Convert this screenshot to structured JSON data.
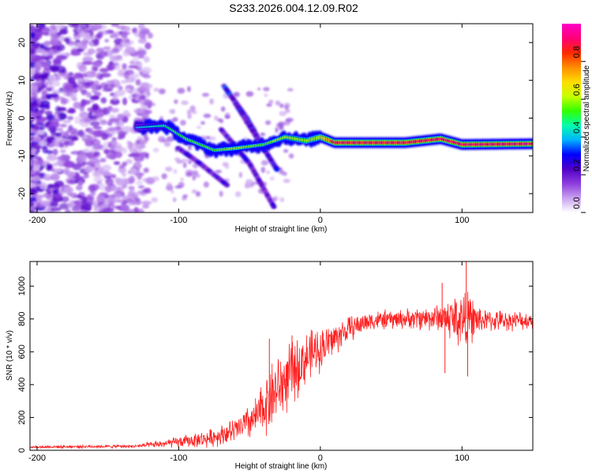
{
  "title": "S233.2026.004.12.09.R02",
  "chart_data": [
    {
      "type": "heatmap",
      "name": "spectrogram",
      "xlabel": "Height of straight line (km)",
      "ylabel": "Frequency (Hz)",
      "xlim": [
        -205,
        150
      ],
      "ylim": [
        -25,
        25
      ],
      "xticks": [
        -200,
        -100,
        0,
        100
      ],
      "yticks": [
        -20,
        -10,
        0,
        10,
        20
      ],
      "colorbar": {
        "label": "Normalized spectral amplitude",
        "range": [
          0.0,
          1.0
        ],
        "ticks": [
          0.0,
          0.2,
          0.4,
          0.6,
          0.8
        ],
        "tick_labels": [
          "0.0",
          "0.2",
          "0.4",
          "0.6",
          "0.8"
        ],
        "colormap": [
          "#ffffff",
          "#c8a0f0",
          "#8c3cdc",
          "#5000c8",
          "#0000ff",
          "#00b4ff",
          "#00ffaa",
          "#32ff00",
          "#c8ff00",
          "#ffdc00",
          "#ff8c00",
          "#ff2800",
          "#ff0078",
          "#ff00c8"
        ]
      },
      "ridge": [
        {
          "x": -130,
          "y": -2.5,
          "v": 0.25
        },
        {
          "x": -110,
          "y": -2.0,
          "v": 0.35
        },
        {
          "x": -95,
          "y": -5.5,
          "v": 0.4
        },
        {
          "x": -75,
          "y": -8.5,
          "v": 0.4
        },
        {
          "x": -60,
          "y": -8.0,
          "v": 0.45
        },
        {
          "x": -40,
          "y": -7.0,
          "v": 0.4
        },
        {
          "x": -25,
          "y": -5.0,
          "v": 0.5
        },
        {
          "x": -10,
          "y": -6.0,
          "v": 0.55
        },
        {
          "x": 0,
          "y": -5.0,
          "v": 0.6
        },
        {
          "x": 10,
          "y": -6.5,
          "v": 0.9
        },
        {
          "x": 60,
          "y": -6.5,
          "v": 0.9
        },
        {
          "x": 85,
          "y": -5.5,
          "v": 0.92
        },
        {
          "x": 100,
          "y": -7.0,
          "v": 0.92
        },
        {
          "x": 150,
          "y": -6.8,
          "v": 0.92
        }
      ],
      "branches": [
        {
          "points": [
            {
              "x": -68,
              "y": 8.5
            },
            {
              "x": -52,
              "y": 0
            },
            {
              "x": -40,
              "y": -8
            }
          ],
          "v": 0.3
        },
        {
          "points": [
            {
              "x": -60,
              "y": 4
            },
            {
              "x": -45,
              "y": -5
            },
            {
              "x": -30,
              "y": -14
            }
          ],
          "v": 0.28
        },
        {
          "points": [
            {
              "x": -70,
              "y": -3
            },
            {
              "x": -50,
              "y": -12
            },
            {
              "x": -32,
              "y": -24
            }
          ],
          "v": 0.25
        },
        {
          "points": [
            {
              "x": -100,
              "y": -8
            },
            {
              "x": -85,
              "y": -12
            },
            {
              "x": -65,
              "y": -18
            }
          ],
          "v": 0.25
        }
      ]
    },
    {
      "type": "line",
      "name": "snr",
      "xlabel": "Height of straight line (km)",
      "ylabel": "SNR (10 * v/v)",
      "xlim": [
        -205,
        150
      ],
      "ylim": [
        0,
        1150
      ],
      "xticks": [
        -200,
        -100,
        0,
        100
      ],
      "yticks": [
        0,
        200,
        400,
        600,
        800,
        1000
      ],
      "color": "#ff2020",
      "envelope": [
        {
          "x": -205,
          "mean": 20,
          "amp": 10
        },
        {
          "x": -130,
          "mean": 25,
          "amp": 12
        },
        {
          "x": -110,
          "mean": 40,
          "amp": 30
        },
        {
          "x": -80,
          "mean": 70,
          "amp": 60
        },
        {
          "x": -60,
          "mean": 120,
          "amp": 90
        },
        {
          "x": -45,
          "mean": 200,
          "amp": 150
        },
        {
          "x": -35,
          "mean": 330,
          "amp": 250
        },
        {
          "x": -25,
          "mean": 420,
          "amp": 240
        },
        {
          "x": -10,
          "mean": 560,
          "amp": 190
        },
        {
          "x": 5,
          "mean": 650,
          "amp": 140
        },
        {
          "x": 20,
          "mean": 740,
          "amp": 90
        },
        {
          "x": 35,
          "mean": 790,
          "amp": 70
        },
        {
          "x": 60,
          "mean": 800,
          "amp": 70
        },
        {
          "x": 85,
          "mean": 810,
          "amp": 100
        },
        {
          "x": 100,
          "mean": 800,
          "amp": 230
        },
        {
          "x": 115,
          "mean": 790,
          "amp": 80
        },
        {
          "x": 150,
          "mean": 790,
          "amp": 60
        }
      ],
      "spikes": [
        {
          "x": -36,
          "y": 680
        },
        {
          "x": -20,
          "y": 700
        },
        {
          "x": 86,
          "y": 1020
        },
        {
          "x": 88,
          "y": 470
        },
        {
          "x": 103,
          "y": 1150
        },
        {
          "x": 104,
          "y": 450
        }
      ]
    }
  ]
}
